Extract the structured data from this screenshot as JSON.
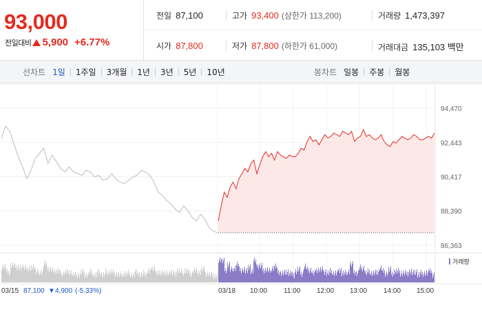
{
  "summary": {
    "current_price": "93,000",
    "change_label": "전일대비",
    "change_amount": "5,900",
    "change_rate": "+6.77%",
    "up_color": "#e32a1f",
    "stats": {
      "prev_close": {
        "label": "전일",
        "value": "87,100"
      },
      "high": {
        "label": "고가",
        "value": "93,400",
        "sub": "(상한가 113,200)"
      },
      "volume": {
        "label": "거래량",
        "value": "1,473,397"
      },
      "open": {
        "label": "시가",
        "value": "87,800"
      },
      "low": {
        "label": "저가",
        "value": "87,800",
        "sub": "(하한가 61,000)"
      },
      "trade_value": {
        "label": "거래대금",
        "value": "135,103 백만"
      }
    }
  },
  "toolbar": {
    "line_chart": {
      "title": "선차트",
      "options": [
        "1일",
        "1주일",
        "3개월",
        "1년",
        "3년",
        "5년",
        "10년"
      ],
      "active_index": 0
    },
    "candle_chart": {
      "title": "봉차트",
      "options": [
        "일봉",
        "주봉",
        "월봉"
      ]
    }
  },
  "chart_data": {
    "type": "line",
    "y_axis_ticks": [
      "94,470",
      "92,443",
      "90,417",
      "88,390",
      "86,363"
    ],
    "ylim": [
      86363,
      94470
    ],
    "prev_close_reference": 87100,
    "previous_session": {
      "date_label": "03/15",
      "close_label": "87,100",
      "change_label": "4,900",
      "rate_label": "(-5.33%)",
      "color": "#bdbdbd",
      "values": [
        92700,
        93400,
        93100,
        92300,
        91600,
        91000,
        90300,
        90800,
        91500,
        91800,
        92100,
        91200,
        91700,
        91300,
        90900,
        90700,
        91000,
        90700,
        90600,
        90500,
        90800,
        90700,
        90400,
        90500,
        90200,
        90300,
        90600,
        90300,
        90100,
        90000,
        90200,
        90400,
        90500,
        90800,
        90700,
        90500,
        90100,
        89500,
        89300,
        89000,
        88800,
        88500,
        88300,
        88700,
        88400,
        88000,
        87800,
        88200,
        87900,
        87400,
        87200,
        87100
      ]
    },
    "current_session": {
      "date_label": "03/18",
      "color": "#e32a1f",
      "fill": "#fde8e8",
      "time_labels": [
        "10:00",
        "11:00",
        "12:00",
        "13:00",
        "14:00",
        "15:00"
      ],
      "values": [
        87800,
        88700,
        89500,
        89200,
        89800,
        90100,
        89700,
        90300,
        90600,
        90900,
        90700,
        91200,
        91400,
        90600,
        91100,
        91600,
        91900,
        91600,
        91800,
        91400,
        91900,
        91700,
        91600,
        91500,
        91700,
        91600,
        91600,
        91800,
        92100,
        92000,
        92500,
        92800,
        92500,
        92600,
        92300,
        92600,
        92900,
        92700,
        92800,
        93000,
        92900,
        92800,
        93100,
        93000,
        92900,
        93100,
        92500,
        92700,
        92800,
        93200,
        92800,
        92900,
        92700,
        92600,
        92700,
        92900,
        92500,
        92300,
        92200,
        92500,
        92400,
        92600,
        92800,
        92700,
        92600,
        92700,
        92900,
        92800,
        92600,
        92600,
        92700,
        92800,
        92700,
        93000
      ]
    },
    "volume": {
      "legend": "거래량",
      "previous_color": "#cfcfcf",
      "current_color": "#8b7cc8"
    }
  }
}
